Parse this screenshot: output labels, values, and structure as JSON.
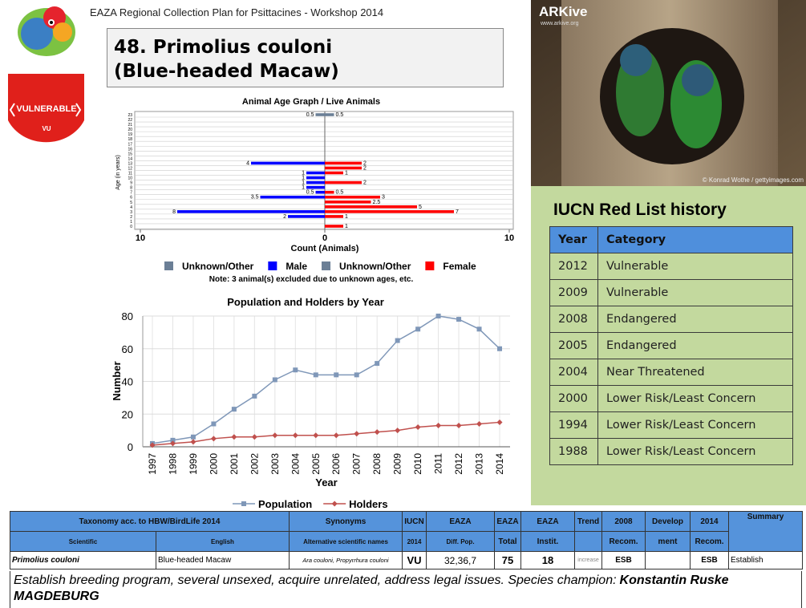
{
  "header": {
    "title": "EAZA Regional Collection Plan for Psittacines - Workshop 2014",
    "species": "48. Primolius couloni",
    "common_name": "(Blue-headed Macaw)"
  },
  "status": {
    "label": "VULNERABLE",
    "code": "VU"
  },
  "photo": {
    "brand": "ARKive",
    "url": "www.arkive.org",
    "credit": "© Konrad Wothe / gettyimages.com"
  },
  "chart_data": [
    {
      "type": "bar",
      "orientation": "horizontal",
      "title": "Animal Age Graph / Live Animals",
      "note": "Note: 3 animal(s) excluded due to unknown ages, etc.",
      "xlabel": "Count (Animals)",
      "ylabel": "Age (in years)",
      "categories": [
        "0",
        "1",
        "2",
        "3",
        "4",
        "5",
        "6",
        "7",
        "8",
        "9",
        "10",
        "11",
        "12",
        "13",
        "14",
        "15",
        "16",
        "17",
        "18",
        "19",
        "20",
        "21",
        "22",
        "23"
      ],
      "xlim": [
        -10,
        10
      ],
      "xticks": [
        {
          "value": -10,
          "label": "10"
        },
        0,
        10
      ],
      "series": [
        {
          "name": "Unknown/Other",
          "color": "#6b7f96",
          "values": [
            null,
            null,
            null,
            null,
            null,
            null,
            null,
            null,
            null,
            null,
            null,
            null,
            null,
            null,
            null,
            null,
            null,
            null,
            null,
            null,
            null,
            null,
            null,
            -0.5
          ],
          "value_labels": [
            null,
            null,
            null,
            null,
            null,
            null,
            null,
            null,
            null,
            null,
            null,
            null,
            null,
            null,
            null,
            null,
            null,
            null,
            null,
            null,
            null,
            null,
            null,
            "0.5"
          ]
        },
        {
          "name": "Male",
          "color": "#0000ff",
          "values": [
            null,
            null,
            -2,
            -8,
            null,
            null,
            -3.5,
            -0.5,
            -1,
            -1,
            -1,
            -1,
            null,
            -4,
            null,
            null,
            null,
            null,
            null,
            null,
            null,
            null,
            null,
            null
          ],
          "value_labels": [
            null,
            null,
            "2",
            "8",
            null,
            null,
            "3.5",
            "0.5",
            "1",
            "1",
            "1",
            "1",
            null,
            "4",
            null,
            null,
            null,
            null,
            null,
            null,
            null,
            null,
            null,
            null
          ]
        },
        {
          "name": "Unknown/Other",
          "color": "#6b7f96",
          "values": [
            null,
            null,
            null,
            null,
            null,
            null,
            null,
            null,
            null,
            null,
            null,
            null,
            null,
            null,
            null,
            null,
            null,
            null,
            null,
            null,
            null,
            null,
            null,
            0.5
          ]
        },
        {
          "name": "Female",
          "color": "#ff0000",
          "values": [
            1,
            null,
            1,
            7,
            5,
            2.5,
            3,
            0.5,
            null,
            2,
            null,
            1,
            2,
            2,
            null,
            null,
            null,
            null,
            null,
            null,
            null,
            null,
            null,
            null
          ]
        }
      ]
    },
    {
      "type": "line",
      "title": "Population and Holders by Year",
      "xlabel": "Year",
      "ylabel": "Number",
      "categories": [
        "1997",
        "1998",
        "1999",
        "2000",
        "2001",
        "2002",
        "2003",
        "2004",
        "2005",
        "2006",
        "2007",
        "2008",
        "2009",
        "2010",
        "2011",
        "2012",
        "2013",
        "2014"
      ],
      "ylim": [
        0,
        80
      ],
      "yticks": [
        0,
        20,
        40,
        60,
        80
      ],
      "grid": true,
      "legend": "bottom",
      "series": [
        {
          "name": "Population",
          "color": "#7f97b8",
          "marker": "square",
          "values": [
            2,
            4,
            6,
            14,
            23,
            31,
            41,
            47,
            44,
            44,
            44,
            51,
            65,
            72,
            80,
            78,
            72,
            60
          ]
        },
        {
          "name": "Holders",
          "color": "#c0504d",
          "marker": "diamond",
          "values": [
            1,
            2,
            3,
            5,
            6,
            6,
            7,
            7,
            7,
            7,
            8,
            9,
            10,
            12,
            13,
            13,
            14,
            15
          ]
        }
      ]
    }
  ],
  "iucn_history": {
    "title": "IUCN Red List history",
    "columns": [
      "Year",
      "Category"
    ],
    "rows": [
      [
        2012,
        "Vulnerable"
      ],
      [
        2009,
        "Vulnerable"
      ],
      [
        2008,
        "Endangered"
      ],
      [
        2005,
        "Endangered"
      ],
      [
        2004,
        "Near Threatened"
      ],
      [
        2000,
        "Lower Risk/Least Concern"
      ],
      [
        1994,
        "Lower Risk/Least Concern"
      ],
      [
        1988,
        "Lower Risk/Least Concern"
      ]
    ]
  },
  "collection_table": {
    "header_top": [
      "Taxonomy acc. to HBW/BirdLife 2014",
      "Synonyms",
      "IUCN",
      "EAZA",
      "EAZA",
      "EAZA",
      "Trend",
      "2008",
      "Develop",
      "2014",
      "Summary"
    ],
    "header_bottom": [
      "Scientific",
      "English",
      "Alternative scientific names",
      "2014",
      "Diff. Pop.",
      "Total",
      "Instit.",
      "Recom.",
      "ment",
      "Recom."
    ],
    "row": [
      "Primolius couloni",
      "Blue-headed Macaw",
      "Ara couloni, Propyrrhura couloni",
      "VU",
      "32,36,7",
      75,
      18,
      "increase",
      "ESB",
      "ESB",
      "Establish"
    ]
  },
  "note": {
    "text": "Establish breeding program, several unsexed, acquire unrelated, address legal issues. Species champion:",
    "champion": "Konstantin Ruske MAGDEBURG"
  }
}
